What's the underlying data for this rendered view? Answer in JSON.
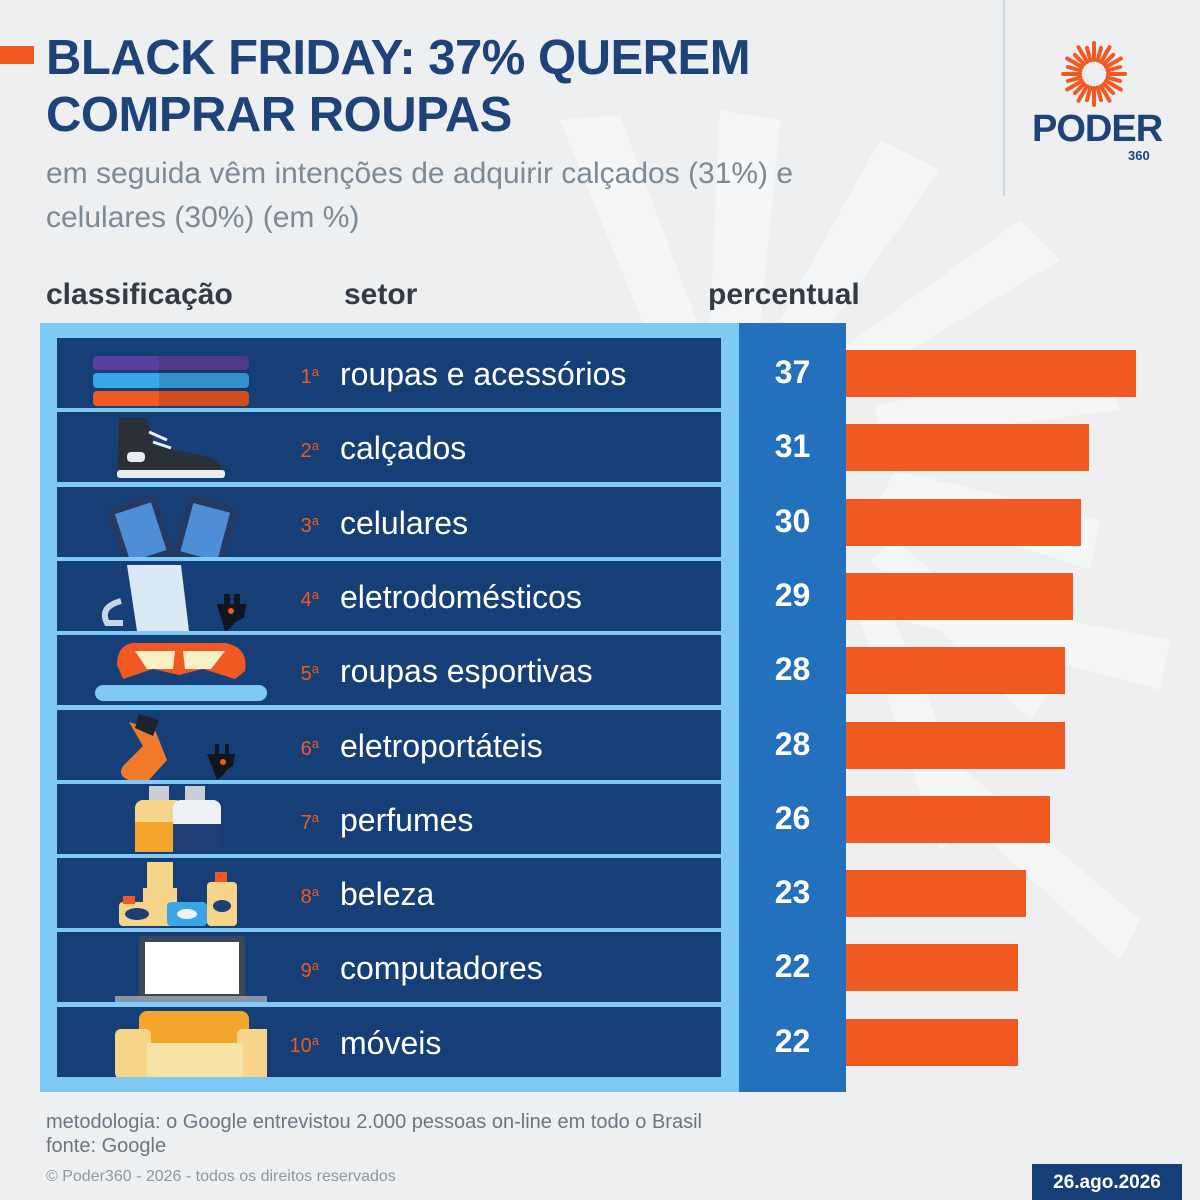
{
  "header": {
    "title_line1": "BLACK FRIDAY: 37% QUEREM",
    "title_line2": "COMPRAR ROUPAS",
    "subtitle_line1": "em seguida vêm intenções de adquirir calçados (31%) e",
    "subtitle_line2": "celulares (30%) (em %)"
  },
  "logo": {
    "word": "PODER",
    "number": "360"
  },
  "columns": {
    "rank": "classificação",
    "sector": "setor",
    "percent": "percentual"
  },
  "colors": {
    "accent": "#f05a22",
    "navy": "#163f78",
    "blue": "#2370bd",
    "light_blue": "#7ecaf5"
  },
  "chart_data": {
    "type": "bar",
    "orientation": "horizontal",
    "categories": [
      "roupas e acessórios",
      "calçados",
      "celulares",
      "eletrodomésticos",
      "roupas esportivas",
      "eletroportáteis",
      "perfumes",
      "beleza",
      "computadores",
      "móveis"
    ],
    "ranks": [
      "1",
      "2",
      "3",
      "4",
      "5",
      "6",
      "7",
      "8",
      "9",
      "10"
    ],
    "rank_suffix": "a",
    "values": [
      37,
      31,
      30,
      29,
      28,
      28,
      26,
      23,
      22,
      22
    ],
    "icons": [
      "clothes-stack-icon",
      "sneaker-icon",
      "phones-icon",
      "blender-icon",
      "goggles-icon",
      "hairdryer-icon",
      "perfume-bottles-icon",
      "beauty-products-icon",
      "computer-monitor-icon",
      "sofa-icon"
    ]
  },
  "footer": {
    "methodology": "metodologia: o Google entrevistou 2.000 pessoas on-line em todo o Brasil",
    "source": "fonte: Google",
    "copyright": "© Poder360 - 2026 - todos os direitos reservados",
    "date": "26.ago.2026"
  }
}
